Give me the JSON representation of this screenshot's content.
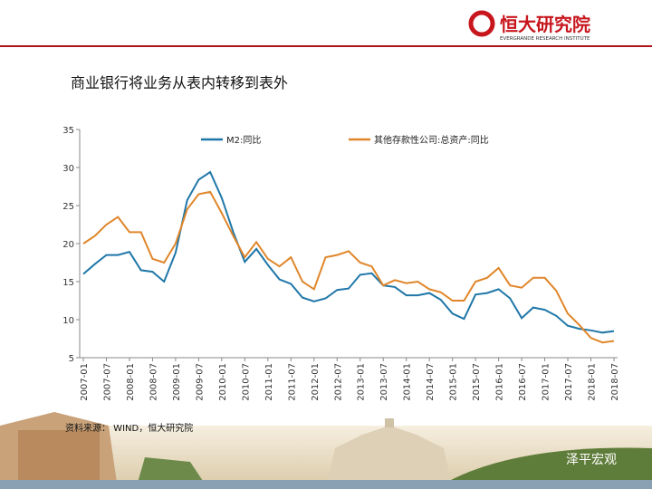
{
  "header": {
    "logo": "恒大研究院",
    "logo_en": "EVERGRANDE RESEARCH INSTITUTE"
  },
  "footer": {
    "source": "资料来源： WIND，恒大研究院",
    "watermark": "泽平宏观"
  },
  "chart_data": {
    "type": "line",
    "title": "商业银行将业务从表内转移到表外",
    "categories": [
      "2007-01",
      null,
      "2007-07",
      null,
      "2008-01",
      null,
      "2008-07",
      null,
      "2009-01",
      null,
      "2009-07",
      null,
      "2010-01",
      null,
      "2010-07",
      null,
      "2011-01",
      null,
      "2011-07",
      null,
      "2012-01",
      null,
      "2012-07",
      null,
      "2013-01",
      null,
      "2013-07",
      null,
      "2014-01",
      null,
      "2014-07",
      null,
      "2015-01",
      null,
      "2015-07",
      null,
      "2016-01",
      null,
      "2016-07",
      null,
      "2017-01",
      null,
      "2017-07",
      null,
      "2018-01",
      null,
      "2018-07"
    ],
    "series": [
      {
        "name": "M2:同比",
        "color": "#1f77a8",
        "values": [
          16,
          17.3,
          18.5,
          18.5,
          18.9,
          16.5,
          16.3,
          15,
          18.8,
          25.7,
          28.4,
          29.4,
          26,
          21.5,
          17.6,
          19.3,
          17.2,
          15.3,
          14.7,
          12.9,
          12.4,
          12.8,
          13.9,
          14.1,
          15.9,
          16.1,
          14.5,
          14.3,
          13.2,
          13.2,
          13.5,
          12.6,
          10.8,
          10.1,
          13.3,
          13.5,
          14,
          12.8,
          10.2,
          11.6,
          11.3,
          10.5,
          9.2,
          8.8,
          8.6,
          8.3,
          8.5
        ]
      },
      {
        "name": "其他存款性公司:总资产:同比",
        "color": "#e0862a",
        "values": [
          20,
          21,
          22.5,
          23.5,
          21.5,
          21.5,
          18,
          17.5,
          20,
          24.5,
          26.5,
          26.8,
          24,
          21,
          18.2,
          20.2,
          18,
          17,
          18.2,
          15,
          14,
          18.2,
          18.5,
          19,
          17.5,
          17,
          14.5,
          15.2,
          14.8,
          15,
          14,
          13.6,
          12.5,
          12.5,
          15,
          15.5,
          16.8,
          14.5,
          14.2,
          15.5,
          15.5,
          13.8,
          10.8,
          9.3,
          7.6,
          7,
          7.2
        ]
      }
    ],
    "ylim": [
      5,
      35
    ],
    "yticks": [
      5,
      10,
      15,
      20,
      25,
      30,
      35
    ],
    "grid": false,
    "legend": "top"
  }
}
